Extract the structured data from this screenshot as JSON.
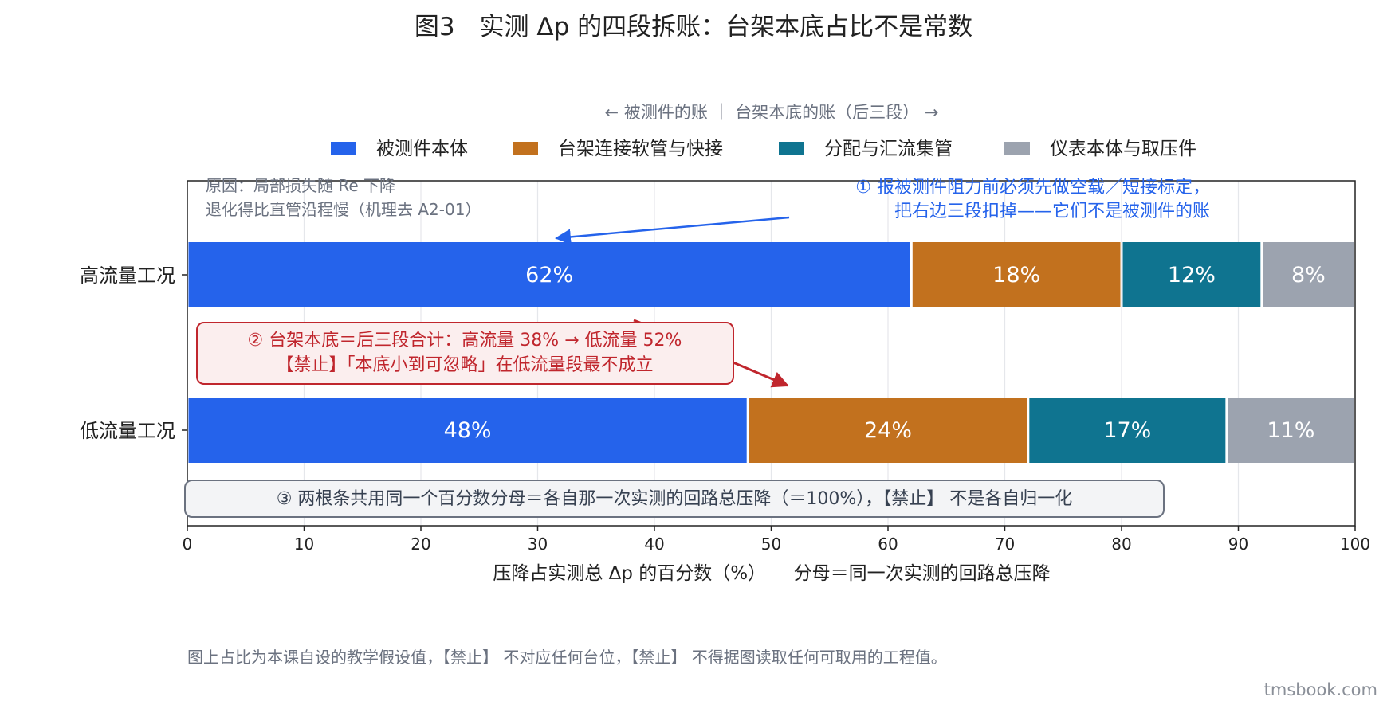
{
  "page": {
    "title": "图3　实测 Δp 的四段拆账：台架本底占比不是常数",
    "subtitle": "← 被测件的账 ｜ 台架本底的账（后三段） →",
    "footnote": "图上占比为本课自设的教学假设值，【禁止】 不对应任何台位，【禁止】 不得据图读取任何可取用的工程值。",
    "watermark": "tmsbook.com"
  },
  "chart_data": {
    "type": "bar",
    "orientation": "horizontal",
    "stacked": true,
    "categories": [
      "高流量工况",
      "低流量工况"
    ],
    "series": [
      {
        "name": "被测件本体",
        "values": [
          62,
          48
        ],
        "labels": [
          "62%",
          "48%"
        ],
        "color": "#2563eb"
      },
      {
        "name": "台架连接软管与快接",
        "values": [
          18,
          24
        ],
        "labels": [
          "18%",
          "24%"
        ],
        "color": "#c2711e"
      },
      {
        "name": "分配与汇流集管",
        "values": [
          12,
          17
        ],
        "labels": [
          "12%",
          "17%"
        ],
        "color": "#0f7490"
      },
      {
        "name": "仪表本体与取压件",
        "values": [
          8,
          11
        ],
        "labels": [
          "8%",
          "11%"
        ],
        "color": "#9ca3af"
      }
    ],
    "xlabel": "压降占实测总 Δp 的百分数（%）　　分母＝同一次实测的回路总压降",
    "xlim": [
      0,
      100
    ],
    "xticks": [
      0,
      10,
      20,
      30,
      40,
      50,
      60,
      70,
      80,
      90,
      100
    ],
    "grid": "vertical",
    "legend_position": "top",
    "annotations": {
      "reason": [
        "原因：局部损失随 Re 下降",
        "退化得比直管沿程慢（机理去 A2-01）"
      ],
      "note1": {
        "lines": [
          "① 报被测件阻力前必须先做空载／短接标定，",
          "把右边三段扣掉——它们不是被测件的账"
        ],
        "color": "#2563eb"
      },
      "note2": {
        "lines": [
          "② 台架本底＝后三段合计：高流量 38% → 低流量 52%",
          "【禁止】「本底小到可忽略」在低流量段最不成立"
        ],
        "color": "#c0262d"
      },
      "note3": {
        "lines": [
          "③ 两根条共用同一个百分数分母＝各自那一次实测的回路总压降（＝100%），【禁止】 不是各自归一化"
        ],
        "color": "#374151"
      }
    }
  }
}
